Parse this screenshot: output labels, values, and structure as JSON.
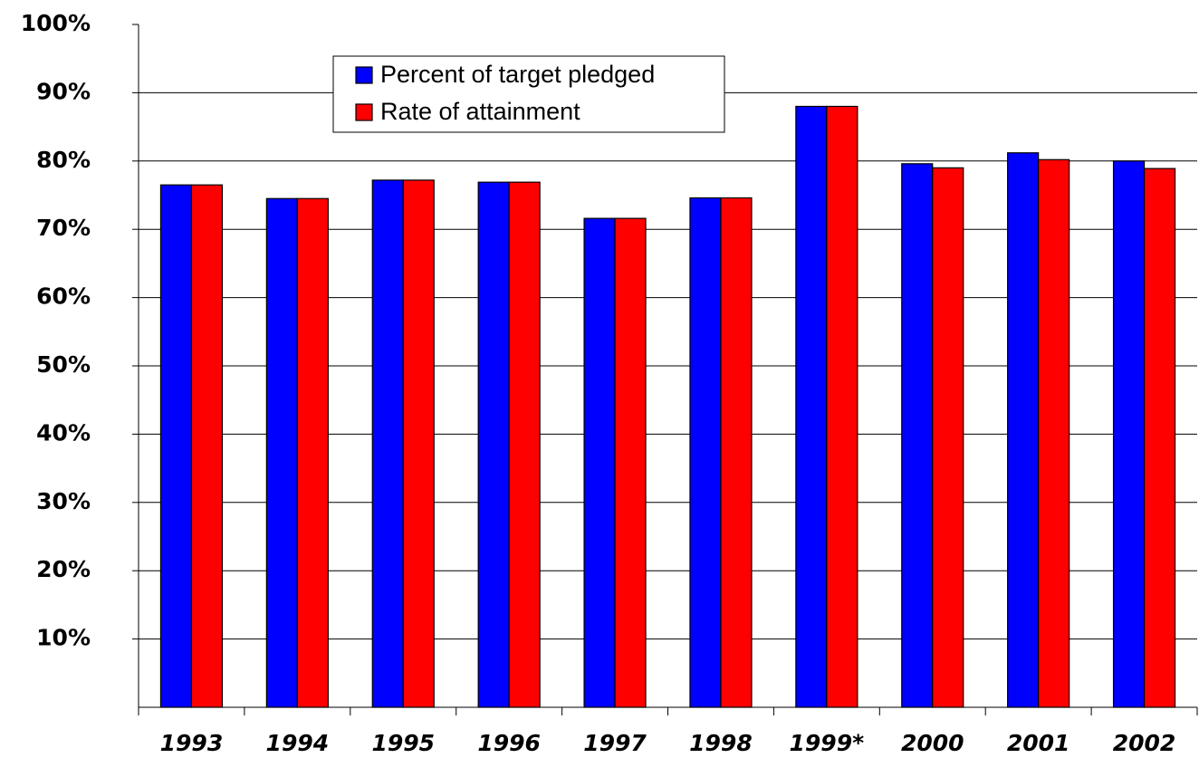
{
  "chart_data": {
    "type": "bar",
    "categories": [
      "1993",
      "1994",
      "1995",
      "1996",
      "1997",
      "1998",
      "1999*",
      "2000",
      "2001",
      "2002"
    ],
    "series": [
      {
        "name": "Percent of target pledged",
        "color": "#0000ff",
        "values": [
          76.5,
          74.5,
          77.2,
          76.9,
          71.6,
          74.6,
          88.0,
          79.6,
          81.2,
          80.0
        ]
      },
      {
        "name": "Rate of attainment",
        "color": "#ff0000",
        "values": [
          76.5,
          74.5,
          77.2,
          76.9,
          71.6,
          74.6,
          88.0,
          79.0,
          80.2,
          78.9
        ]
      }
    ],
    "ylim": [
      0,
      100
    ],
    "yticks": [
      {
        "value": 10,
        "label": "10%"
      },
      {
        "value": 20,
        "label": "20%"
      },
      {
        "value": 30,
        "label": "30%"
      },
      {
        "value": 40,
        "label": "40%"
      },
      {
        "value": 50,
        "label": "50%"
      },
      {
        "value": 60,
        "label": "60%"
      },
      {
        "value": 70,
        "label": "70%"
      },
      {
        "value": 80,
        "label": "80%"
      },
      {
        "value": 90,
        "label": "90%"
      },
      {
        "value": 100,
        "label": "100%"
      }
    ],
    "grid": true,
    "legend": "top-left"
  }
}
